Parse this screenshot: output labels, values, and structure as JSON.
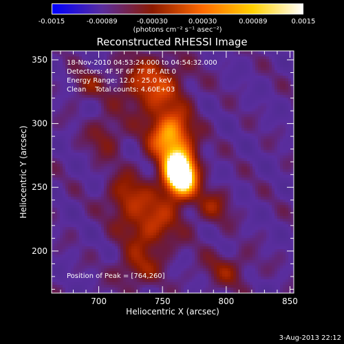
{
  "chart_data": {
    "type": "heatmap",
    "title": "Reconstructed RHESSI Image",
    "xlabel": "Heliocentric X (arcsec)",
    "ylabel": "Heliocentric Y (arcsec)",
    "xlim": [
      663,
      853
    ],
    "ylim": [
      167,
      357
    ],
    "xticks": [
      700,
      750,
      800,
      850
    ],
    "xtick_labels": [
      "700",
      "750",
      "800",
      "850"
    ],
    "yticks": [
      200,
      250,
      300,
      350
    ],
    "ytick_labels": [
      "200",
      "250",
      "300",
      "350"
    ],
    "colorbar": {
      "range": [
        -0.0015,
        0.0015
      ],
      "tick_labels": [
        "-0.0015",
        "-0.00089",
        "-0.00030",
        "0.00030",
        "0.00089",
        "0.0015"
      ],
      "units": "(photons cm⁻² s⁻¹ asec⁻²)",
      "colors": [
        "#0000ff",
        "#5a2d9e",
        "#8b1a00",
        "#ff6a00",
        "#ffd000",
        "#ffffff"
      ]
    },
    "annotations": {
      "time_range": "18-Nov-2010 04:53:24.000 to 04:54:32.000",
      "detectors": "Detectors: 4F 5F 6F 7F 8F, Att 0",
      "energy_range": "Energy Range: 12.0 - 25.0 keV",
      "clean_counts": "Clean    Total counts: 4.60E+03",
      "peak_position": "Position of Peak = [764,260]"
    },
    "peak": [
      764,
      260
    ],
    "sources": [
      {
        "x": 764,
        "y": 260,
        "sx": 9,
        "sy": 12,
        "amp": 1.0
      },
      {
        "x": 756,
        "y": 290,
        "sx": 12,
        "sy": 14,
        "amp": 0.55
      },
      {
        "x": 742,
        "y": 330,
        "sx": 18,
        "sy": 16,
        "amp": 0.35
      },
      {
        "x": 740,
        "y": 222,
        "sx": 16,
        "sy": 18,
        "amp": 0.32
      },
      {
        "x": 720,
        "y": 245,
        "sx": 10,
        "sy": 12,
        "amp": 0.22
      },
      {
        "x": 705,
        "y": 290,
        "sx": 10,
        "sy": 12,
        "amp": 0.18
      },
      {
        "x": 790,
        "y": 235,
        "sx": 10,
        "sy": 10,
        "amp": 0.2
      },
      {
        "x": 800,
        "y": 185,
        "sx": 14,
        "sy": 10,
        "amp": 0.18
      },
      {
        "x": 690,
        "y": 330,
        "sx": 10,
        "sy": 8,
        "amp": 0.16
      },
      {
        "x": 730,
        "y": 185,
        "sx": 12,
        "sy": 10,
        "amp": 0.2
      }
    ],
    "date_stamp": "3-Aug-2013 22:12"
  }
}
